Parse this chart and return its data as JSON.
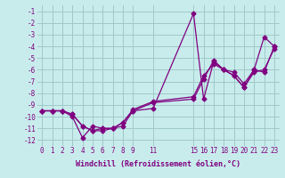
{
  "xlabel": "Windchill (Refroidissement éolien,°C)",
  "background_color": "#c8ecec",
  "grid_color": "#a0c8c8",
  "line_color": "#800080",
  "xlim": [
    -0.5,
    23.5
  ],
  "ylim": [
    -12.5,
    -0.5
  ],
  "xticks": [
    0,
    1,
    2,
    3,
    4,
    5,
    6,
    7,
    8,
    9,
    11,
    15,
    16,
    17,
    18,
    19,
    20,
    21,
    22,
    23
  ],
  "yticks": [
    -1,
    -2,
    -3,
    -4,
    -5,
    -6,
    -7,
    -8,
    -9,
    -10,
    -11,
    -12
  ],
  "series1_x": [
    0,
    1,
    2,
    3,
    4,
    5,
    6,
    7,
    8,
    9,
    11,
    15,
    16,
    17,
    18,
    19,
    20,
    21,
    22,
    23
  ],
  "series1_y": [
    -9.5,
    -9.5,
    -9.5,
    -10.0,
    -11.8,
    -10.8,
    -11.0,
    -11.0,
    -10.8,
    -9.5,
    -9.3,
    -1.2,
    -8.5,
    -5.3,
    -6.0,
    -6.2,
    -7.2,
    -6.0,
    -6.2,
    -4.0
  ],
  "series2_x": [
    0,
    1,
    2,
    3,
    4,
    5,
    6,
    7,
    8,
    9,
    11,
    15,
    16,
    17,
    18,
    19,
    20,
    21,
    22,
    23
  ],
  "series2_y": [
    -9.5,
    -9.5,
    -9.5,
    -9.8,
    -10.8,
    -11.2,
    -11.2,
    -11.0,
    -10.5,
    -9.5,
    -8.8,
    -8.5,
    -6.8,
    -5.2,
    -6.0,
    -6.5,
    -7.5,
    -6.2,
    -6.0,
    -4.2
  ],
  "series3_x": [
    0,
    1,
    2,
    3,
    4,
    5,
    6,
    7,
    8,
    9,
    11,
    15,
    16,
    17,
    18,
    19,
    20,
    21,
    22,
    23
  ],
  "series3_y": [
    -9.5,
    -9.5,
    -9.5,
    -9.8,
    -10.8,
    -11.2,
    -11.0,
    -11.0,
    -10.5,
    -9.4,
    -8.7,
    -8.3,
    -6.5,
    -5.5,
    -6.0,
    -6.5,
    -7.5,
    -6.0,
    -3.2,
    -4.0
  ]
}
